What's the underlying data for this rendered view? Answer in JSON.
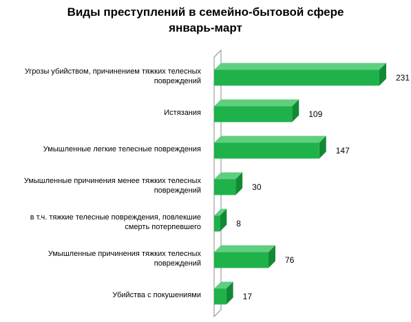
{
  "chart_data": {
    "type": "bar",
    "orientation": "horizontal",
    "title": "Виды преступлений в семейно-бытовой сфере",
    "subtitle": "январь-март",
    "categories": [
      [
        "Угрозы убийством, причинением  тяжких телесных",
        "повреждений"
      ],
      [
        "Истязания"
      ],
      [
        "Умышленные  легкие телесные повреждения"
      ],
      [
        "Умышленные  причинения  менее  тяжких телесных",
        "повреждений"
      ],
      [
        "в т.ч.  тяжкие телесные  повреждения,  повлекшие",
        "смерть  потерпевшего"
      ],
      [
        "Умышленные  причинения  тяжких телесных",
        "повреждений"
      ],
      [
        "Убийства с покушениями"
      ]
    ],
    "values": [
      231,
      109,
      147,
      30,
      8,
      76,
      17
    ],
    "data_labels": [
      "231",
      "109",
      "147",
      "30",
      "8",
      "76",
      "17"
    ],
    "xlim": [
      0,
      240
    ],
    "grid": false,
    "legend": "none",
    "colors": {
      "bar_front": "#1fb24a",
      "bar_top": "#5fcf7f",
      "bar_side": "#128a35",
      "wall": "#888888"
    }
  }
}
